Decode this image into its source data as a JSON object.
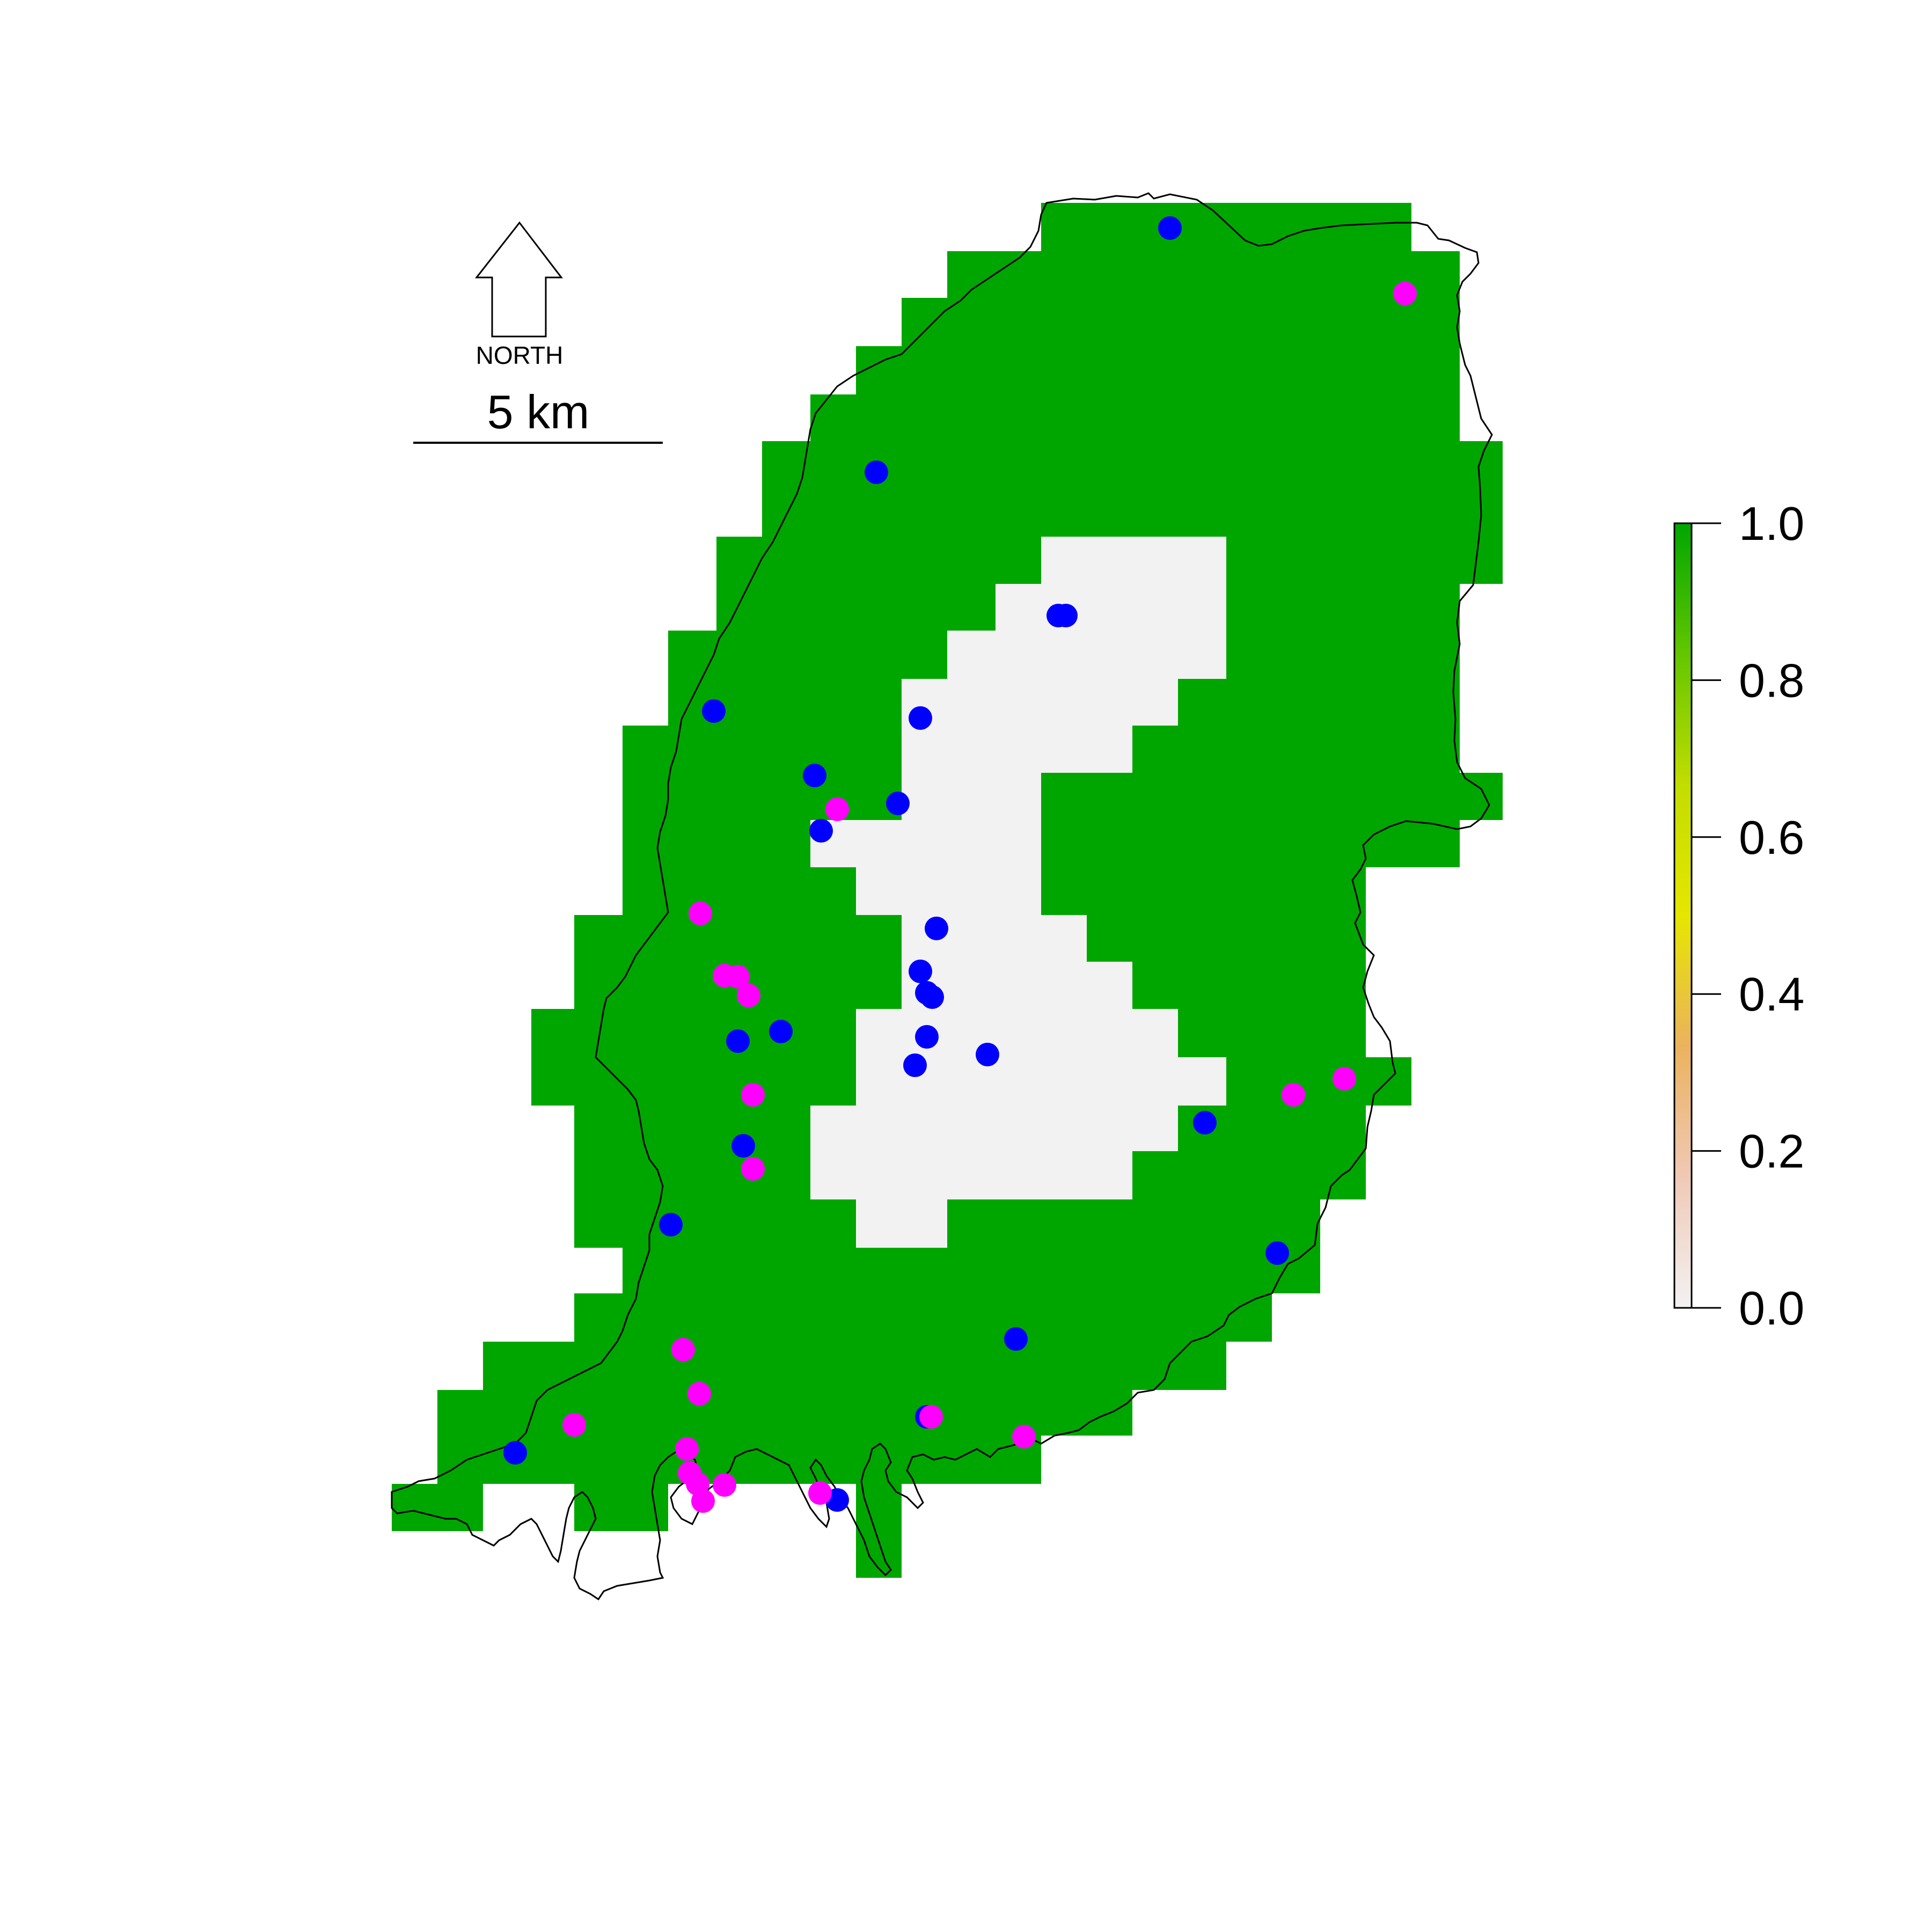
{
  "map": {
    "north_label": "NORTH",
    "scale_label": "5 km",
    "raster_colors": {
      "high": "#00A600",
      "low": "#F2F2F2"
    },
    "point_colors": {
      "blue": "#0000FF",
      "magenta": "#FF00FF"
    },
    "legend": {
      "colormap": [
        "#F2F2F2",
        "#F0C9B6",
        "#EBB25E",
        "#E6E600",
        "#C2DD00",
        "#63C600",
        "#00A600"
      ],
      "ticks": [
        "0.0",
        "0.2",
        "0.4",
        "0.6",
        "0.8",
        "1.0"
      ]
    }
  }
}
